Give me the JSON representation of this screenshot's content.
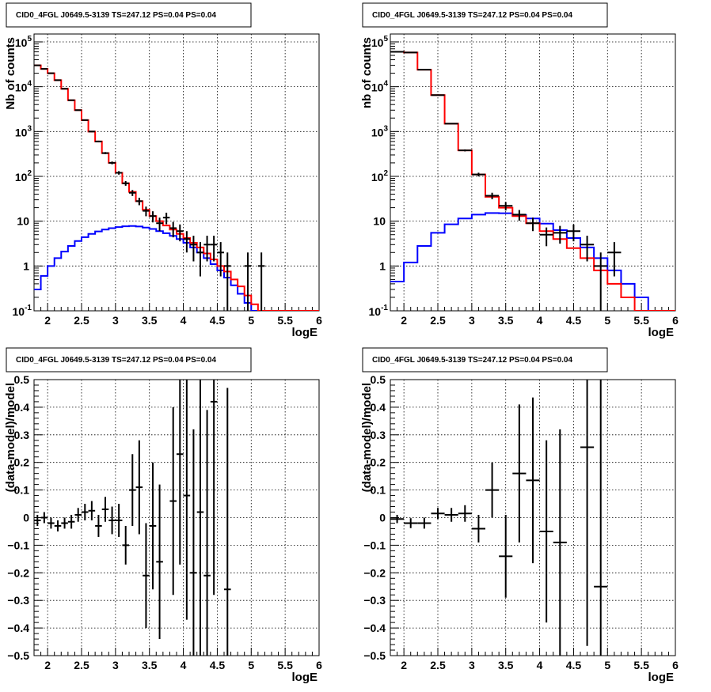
{
  "chart_data": [
    {
      "type": "step-histogram",
      "title": "CID0_4FGL J0649.5-3139 TS=247.12 PS=0.04 PS=0.04",
      "xlabel": "logE",
      "ylabel": "Nb of counts",
      "xlim": [
        1.8,
        6.0
      ],
      "ylim": [
        0.1,
        150000
      ],
      "yscale": "log",
      "grid": true,
      "xticks": [
        "2",
        "2.5",
        "3",
        "3.5",
        "4",
        "4.5",
        "5",
        "5.5",
        "6"
      ],
      "yticks": [
        "10^-1",
        "1",
        "10",
        "10^2",
        "10^3",
        "10^4",
        "10^5"
      ],
      "colors": {
        "total_model": "#ff0000",
        "source_model": "#0000ff",
        "data": "#000000"
      },
      "bin_width": 0.1,
      "bin_start": 1.8,
      "total_model": [
        30000,
        25000,
        20000,
        14000,
        9000,
        5000,
        3000,
        1800,
        1000,
        600,
        330,
        200,
        120,
        70,
        45,
        28,
        18,
        13,
        10,
        8,
        6.5,
        5.2,
        4.2,
        3.3,
        2.6,
        1.9,
        1.4,
        1.0,
        0.75,
        0.5,
        0.35,
        0.22,
        0.14,
        0.1,
        0.1,
        0.1,
        0.1,
        0.1,
        0.1,
        0.1,
        0.1,
        0.1
      ],
      "source_model": [
        0.3,
        0.6,
        1.0,
        1.5,
        2.1,
        2.8,
        3.6,
        4.4,
        5.2,
        5.9,
        6.5,
        7.0,
        7.4,
        7.7,
        7.8,
        7.6,
        7.2,
        6.7,
        6.0,
        5.4,
        4.7,
        4.0,
        3.3,
        2.6,
        2.0,
        1.5,
        1.1,
        0.8,
        0.55,
        0.37,
        0.24,
        0.15,
        0.1,
        0.1,
        0.1,
        0.1,
        0.1,
        0.1,
        0.1,
        0.1,
        0.1,
        0.1
      ],
      "data_points": [
        {
          "x": 1.85,
          "y": 30000
        },
        {
          "x": 1.95,
          "y": 25000
        },
        {
          "x": 2.05,
          "y": 20000
        },
        {
          "x": 2.15,
          "y": 14000
        },
        {
          "x": 2.25,
          "y": 9000
        },
        {
          "x": 2.35,
          "y": 5000
        },
        {
          "x": 2.45,
          "y": 3000
        },
        {
          "x": 2.55,
          "y": 1800
        },
        {
          "x": 2.65,
          "y": 1000
        },
        {
          "x": 2.75,
          "y": 600
        },
        {
          "x": 2.85,
          "y": 330
        },
        {
          "x": 2.95,
          "y": 200
        },
        {
          "x": 3.05,
          "y": 120
        },
        {
          "x": 3.15,
          "y": 70
        },
        {
          "x": 3.25,
          "y": 43
        },
        {
          "x": 3.35,
          "y": 28
        },
        {
          "x": 3.45,
          "y": 17
        },
        {
          "x": 3.55,
          "y": 13
        },
        {
          "x": 3.65,
          "y": 9
        },
        {
          "x": 3.75,
          "y": 12
        },
        {
          "x": 3.85,
          "y": 7
        },
        {
          "x": 3.95,
          "y": 6
        },
        {
          "x": 4.05,
          "y": 4
        },
        {
          "x": 4.15,
          "y": 3
        },
        {
          "x": 4.25,
          "y": 2
        },
        {
          "x": 4.35,
          "y": 3
        },
        {
          "x": 4.45,
          "y": 3
        },
        {
          "x": 4.55,
          "y": 2
        },
        {
          "x": 4.65,
          "y": 1
        },
        {
          "x": 4.95,
          "y": 1
        },
        {
          "x": 5.15,
          "y": 1
        }
      ]
    },
    {
      "type": "step-histogram",
      "title": "CID0_4FGL J0649.5-3139 TS=247.12 PS=0.04 PS=0.04",
      "xlabel": "logE",
      "ylabel": "nb of counts",
      "xlim": [
        1.8,
        6.0
      ],
      "ylim": [
        0.1,
        150000
      ],
      "yscale": "log",
      "grid": true,
      "xticks": [
        "2",
        "2.5",
        "3",
        "3.5",
        "4",
        "4.5",
        "5",
        "5.5",
        "6"
      ],
      "yticks": [
        "10^-1",
        "1",
        "10",
        "10^2",
        "10^3",
        "10^4",
        "10^5"
      ],
      "colors": {
        "total_model": "#ff0000",
        "source_model": "#0000ff",
        "data": "#000000"
      },
      "bin_width": 0.2,
      "bin_start": 1.8,
      "total_model": [
        60000,
        58000,
        24000,
        6500,
        1500,
        380,
        110,
        35,
        20,
        13,
        9,
        6,
        4,
        2.5,
        1.5,
        0.8,
        0.4,
        0.2,
        0.1,
        0.1,
        0.1
      ],
      "source_model": [
        0.45,
        1.2,
        2.8,
        5.5,
        8.5,
        11.5,
        14.0,
        15.2,
        15.0,
        13.8,
        11.5,
        8.8,
        6.3,
        4.2,
        2.6,
        1.5,
        0.8,
        0.4,
        0.2,
        0.1,
        0.1
      ],
      "data_points": [
        {
          "x": 1.9,
          "y": 60000
        },
        {
          "x": 2.1,
          "y": 58000
        },
        {
          "x": 2.3,
          "y": 24000
        },
        {
          "x": 2.5,
          "y": 6500
        },
        {
          "x": 2.7,
          "y": 1500
        },
        {
          "x": 2.9,
          "y": 380
        },
        {
          "x": 3.1,
          "y": 110
        },
        {
          "x": 3.3,
          "y": 37
        },
        {
          "x": 3.5,
          "y": 22
        },
        {
          "x": 3.7,
          "y": 14
        },
        {
          "x": 3.9,
          "y": 9
        },
        {
          "x": 4.1,
          "y": 5
        },
        {
          "x": 4.3,
          "y": 5.5
        },
        {
          "x": 4.5,
          "y": 6
        },
        {
          "x": 4.7,
          "y": 3
        },
        {
          "x": 4.9,
          "y": 1
        },
        {
          "x": 5.1,
          "y": 2
        }
      ]
    },
    {
      "type": "scatter-errorbars",
      "title": "CID0_4FGL J0649.5-3139 TS=247.12 PS=0.04 PS=0.04",
      "xlabel": "logE",
      "ylabel": "(data-model)/model",
      "xlim": [
        1.8,
        6.0
      ],
      "ylim": [
        -0.5,
        0.5
      ],
      "grid": true,
      "xticks": [
        "2",
        "2.5",
        "3",
        "3.5",
        "4",
        "4.5",
        "5",
        "5.5",
        "6"
      ],
      "yticks": [
        "−0.5",
        "−0.4",
        "−0.3",
        "−0.2",
        "−0.1",
        "0",
        "0.1",
        "0.2",
        "0.3",
        "0.4",
        "0.5"
      ],
      "bin_half_width": 0.05,
      "points": [
        {
          "x": 1.85,
          "y": -0.01,
          "err": 0.02
        },
        {
          "x": 1.95,
          "y": 0.0,
          "err": 0.02
        },
        {
          "x": 2.05,
          "y": -0.02,
          "err": 0.02
        },
        {
          "x": 2.15,
          "y": -0.03,
          "err": 0.02
        },
        {
          "x": 2.25,
          "y": -0.02,
          "err": 0.02
        },
        {
          "x": 2.35,
          "y": -0.015,
          "err": 0.025
        },
        {
          "x": 2.45,
          "y": 0.01,
          "err": 0.025
        },
        {
          "x": 2.55,
          "y": 0.02,
          "err": 0.03
        },
        {
          "x": 2.65,
          "y": 0.025,
          "err": 0.035
        },
        {
          "x": 2.75,
          "y": -0.03,
          "err": 0.04
        },
        {
          "x": 2.85,
          "y": 0.03,
          "err": 0.045
        },
        {
          "x": 2.95,
          "y": -0.01,
          "err": 0.05
        },
        {
          "x": 3.05,
          "y": -0.01,
          "err": 0.06
        },
        {
          "x": 3.15,
          "y": -0.1,
          "err": 0.07
        },
        {
          "x": 3.25,
          "y": 0.1,
          "err": 0.13
        },
        {
          "x": 3.35,
          "y": 0.11,
          "err": 0.17
        },
        {
          "x": 3.45,
          "y": -0.21,
          "err": 0.19
        },
        {
          "x": 3.55,
          "y": -0.03,
          "err": 0.23
        },
        {
          "x": 3.65,
          "y": -0.16,
          "err": 0.28
        },
        {
          "x": 3.85,
          "y": 0.06,
          "err": 0.34
        },
        {
          "x": 3.95,
          "y": 0.23,
          "err": 0.4
        },
        {
          "x": 4.05,
          "y": 0.08,
          "err": 0.45
        },
        {
          "x": 4.15,
          "y": -0.2,
          "err": 0.52
        },
        {
          "x": 4.25,
          "y": 0.02,
          "err": 0.6
        },
        {
          "x": 4.35,
          "y": -0.21,
          "err": 0.6
        },
        {
          "x": 4.45,
          "y": 0.42,
          "err": 0.7
        },
        {
          "x": 4.65,
          "y": -0.26,
          "err": 0.73
        }
      ]
    },
    {
      "type": "scatter-errorbars",
      "title": "CID0_4FGL J0649.5-3139 TS=247.12 PS=0.04 PS=0.04",
      "xlabel": "logE",
      "ylabel": "(data-model)/model",
      "xlim": [
        1.8,
        6.0
      ],
      "ylim": [
        -0.5,
        0.5
      ],
      "grid": true,
      "xticks": [
        "2",
        "2.5",
        "3",
        "3.5",
        "4",
        "4.5",
        "5",
        "5.5",
        "6"
      ],
      "yticks": [
        "−0.5",
        "−0.4",
        "−0.3",
        "−0.2",
        "−0.1",
        "0",
        "0.1",
        "0.2",
        "0.3",
        "0.4",
        "0.5"
      ],
      "bin_half_width": 0.1,
      "points": [
        {
          "x": 1.9,
          "y": -0.005,
          "err": 0.015
        },
        {
          "x": 2.1,
          "y": -0.02,
          "err": 0.018
        },
        {
          "x": 2.3,
          "y": -0.02,
          "err": 0.02
        },
        {
          "x": 2.5,
          "y": 0.015,
          "err": 0.02
        },
        {
          "x": 2.7,
          "y": 0.01,
          "err": 0.025
        },
        {
          "x": 2.9,
          "y": 0.015,
          "err": 0.03
        },
        {
          "x": 3.1,
          "y": -0.04,
          "err": 0.05
        },
        {
          "x": 3.3,
          "y": 0.1,
          "err": 0.1
        },
        {
          "x": 3.5,
          "y": -0.14,
          "err": 0.15
        },
        {
          "x": 3.7,
          "y": 0.16,
          "err": 0.25
        },
        {
          "x": 3.9,
          "y": 0.135,
          "err": 0.3
        },
        {
          "x": 4.1,
          "y": -0.05,
          "err": 0.33
        },
        {
          "x": 4.3,
          "y": -0.09,
          "err": 0.41
        },
        {
          "x": 4.7,
          "y": 0.255,
          "err": 0.72
        },
        {
          "x": 4.9,
          "y": -0.25,
          "err": 0.76
        }
      ]
    }
  ]
}
